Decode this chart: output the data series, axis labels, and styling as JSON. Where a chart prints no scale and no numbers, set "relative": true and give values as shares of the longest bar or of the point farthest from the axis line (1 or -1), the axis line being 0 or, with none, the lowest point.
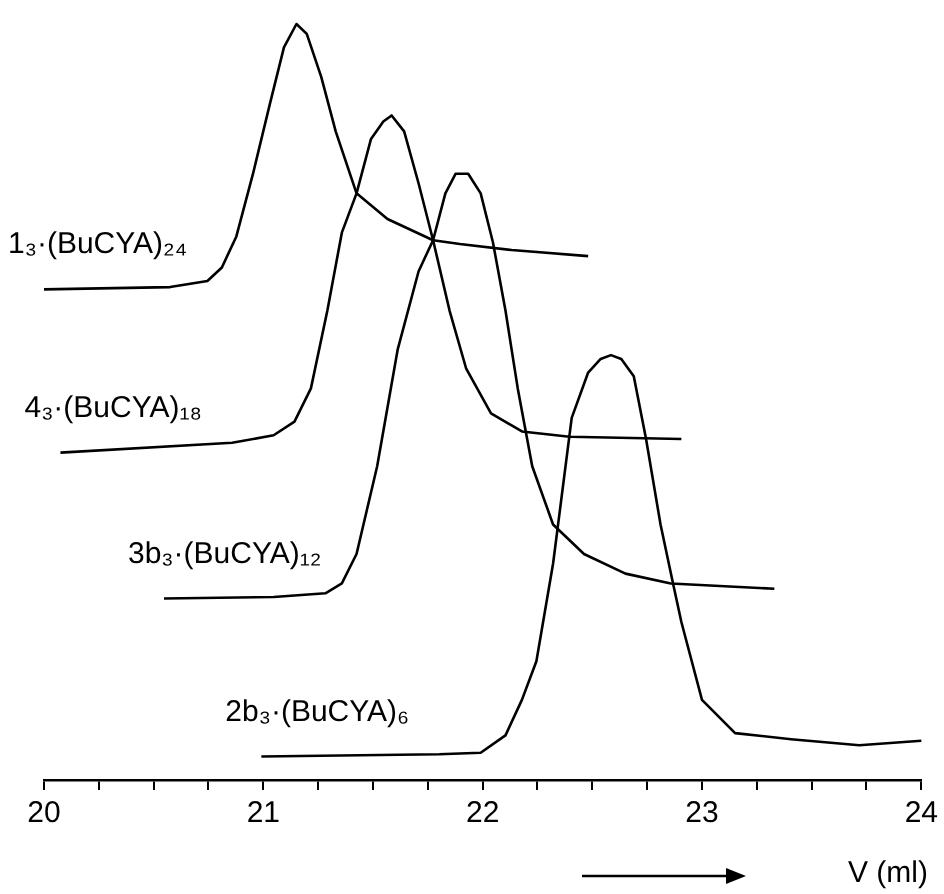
{
  "chart_data": {
    "type": "line",
    "relative": true,
    "xlabel": "V (ml)",
    "xlim": [
      20,
      24
    ],
    "xticks": [
      20,
      {
        "value": 20.25,
        "label": null
      },
      {
        "value": 20.5,
        "label": null
      },
      {
        "value": 20.75,
        "label": null
      },
      21,
      {
        "value": 21.25,
        "label": null
      },
      {
        "value": 21.5,
        "label": null
      },
      {
        "value": 21.75,
        "label": null
      },
      22,
      {
        "value": 22.25,
        "label": null
      },
      {
        "value": 22.5,
        "label": null
      },
      {
        "value": 22.75,
        "label": null
      },
      23,
      {
        "value": 23.25,
        "label": null
      },
      {
        "value": 23.5,
        "label": null
      },
      {
        "value": 23.75,
        "label": null
      },
      24
    ],
    "grid": false,
    "legend": false,
    "tick_labels": "x",
    "marker": "none",
    "line_style": "solid",
    "series": [
      {
        "name": "1₃·(BuCYA)₂₄",
        "color": "#000000",
        "x": [
          20.0,
          20.575,
          20.745,
          20.811,
          20.877,
          20.953,
          21.028,
          21.094,
          21.151,
          21.198,
          21.264,
          21.33,
          21.425,
          21.566,
          21.774,
          21.896,
          22.132,
          22.481
        ],
        "values": [
          0.649,
          0.652,
          0.66,
          0.678,
          0.719,
          0.802,
          0.892,
          0.969,
          1.0,
          0.987,
          0.93,
          0.858,
          0.776,
          0.742,
          0.714,
          0.709,
          0.701,
          0.693
        ]
      },
      {
        "name": "4₃·(BuCYA)₁₈",
        "color": "#000000",
        "x": [
          20.075,
          20.858,
          21.047,
          21.142,
          21.217,
          21.292,
          21.358,
          21.425,
          21.491,
          21.547,
          21.585,
          21.642,
          21.708,
          21.774,
          21.849,
          21.925,
          22.038,
          22.179,
          22.396,
          22.906
        ],
        "values": [
          0.433,
          0.446,
          0.456,
          0.474,
          0.518,
          0.621,
          0.724,
          0.776,
          0.848,
          0.871,
          0.879,
          0.858,
          0.789,
          0.714,
          0.621,
          0.544,
          0.485,
          0.461,
          0.454,
          0.451
        ]
      },
      {
        "name": "3b₃·(BuCYA)₁₂",
        "color": "#000000",
        "x": [
          20.547,
          21.047,
          21.283,
          21.358,
          21.425,
          21.519,
          21.613,
          21.708,
          21.774,
          21.83,
          21.877,
          21.934,
          21.991,
          22.047,
          22.104,
          22.16,
          22.226,
          22.321,
          22.462,
          22.651,
          22.858,
          23.33
        ],
        "values": [
          0.24,
          0.242,
          0.247,
          0.26,
          0.299,
          0.415,
          0.57,
          0.673,
          0.714,
          0.776,
          0.802,
          0.802,
          0.776,
          0.711,
          0.621,
          0.518,
          0.415,
          0.338,
          0.299,
          0.273,
          0.26,
          0.253
        ]
      },
      {
        "name": "2b₃·(BuCYA)₆",
        "color": "#000000",
        "x": [
          20.991,
          21.802,
          21.991,
          22.104,
          22.179,
          22.245,
          22.321,
          22.406,
          22.481,
          22.538,
          22.585,
          22.632,
          22.689,
          22.745,
          22.811,
          22.868,
          22.906,
          23.0,
          23.151,
          23.406,
          23.717,
          24.0
        ],
        "values": [
          0.031,
          0.034,
          0.036,
          0.059,
          0.106,
          0.157,
          0.286,
          0.479,
          0.539,
          0.557,
          0.562,
          0.557,
          0.534,
          0.451,
          0.338,
          0.26,
          0.209,
          0.106,
          0.062,
          0.054,
          0.046,
          0.052
        ]
      }
    ]
  }
}
